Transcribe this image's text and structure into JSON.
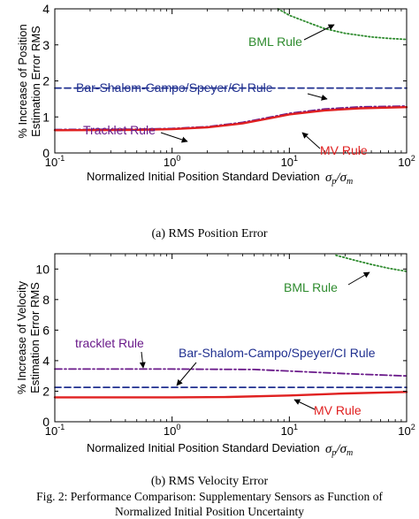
{
  "figure": {
    "caption_line1": "Fig. 2: Performance Comparison: Supplementary Sensors as Function of",
    "caption_line2": "Normalized Initial Position Uncertainty"
  },
  "chart_data": [
    {
      "type": "line",
      "caption": "(a) RMS Position Error",
      "xlabel": "Normalized Initial Position Standard Deviation",
      "xlabel_math": "σp/σm",
      "ylabel_line1": "% Increase of Position",
      "ylabel_line2": "Estimation Error RMS",
      "xscale": "log",
      "xlim": [
        0.1,
        100
      ],
      "ylim": [
        0,
        4
      ],
      "yticks": [
        0,
        1,
        2,
        3,
        4
      ],
      "xtick_labels": [
        "10-1",
        "100",
        "101",
        "102"
      ],
      "grid": false,
      "series": [
        {
          "name": "BML Rule",
          "color": "#2e8b2e",
          "style": "dotted",
          "x": [
            8,
            10,
            15,
            20,
            30,
            50,
            70,
            100
          ],
          "y": [
            4.0,
            3.82,
            3.6,
            3.45,
            3.32,
            3.22,
            3.18,
            3.15
          ]
        },
        {
          "name": "Bar-Shalom-Campo/Speyer/CI Rule",
          "color": "#1f2f8f",
          "style": "dashed",
          "x": [
            0.1,
            100
          ],
          "y": [
            1.8,
            1.8
          ]
        },
        {
          "name": "Tracklet Rule",
          "color": "#6a1a8a",
          "style": "dashdot",
          "x": [
            0.1,
            0.5,
            1,
            2,
            4,
            7,
            10,
            20,
            40,
            100
          ],
          "y": [
            0.65,
            0.66,
            0.68,
            0.73,
            0.85,
            1.0,
            1.1,
            1.22,
            1.28,
            1.3
          ]
        },
        {
          "name": "MV Rule",
          "color": "#e02020",
          "style": "solid",
          "x": [
            0.1,
            0.5,
            1,
            2,
            4,
            7,
            10,
            20,
            40,
            100
          ],
          "y": [
            0.63,
            0.64,
            0.66,
            0.71,
            0.82,
            0.97,
            1.07,
            1.18,
            1.24,
            1.27
          ]
        }
      ],
      "annotations": [
        "BML Rule",
        "Bar-Shalom-Campo/Speyer/CI Rule",
        "Tracklet Rule",
        "MV Rule"
      ]
    },
    {
      "type": "line",
      "caption": "(b) RMS Velocity Error",
      "xlabel": "Normalized Initial Position Standard Deviation",
      "xlabel_math": "σp/σm",
      "ylabel_line1": "% Increase of Velocity",
      "ylabel_line2": "Estimation Error RMS",
      "xscale": "log",
      "xlim": [
        0.1,
        100
      ],
      "ylim": [
        0,
        11
      ],
      "yticks": [
        0,
        2,
        4,
        6,
        8,
        10
      ],
      "xtick_labels": [
        "10-1",
        "100",
        "101",
        "102"
      ],
      "grid": false,
      "series": [
        {
          "name": "BML Rule",
          "color": "#2e8b2e",
          "style": "dotted",
          "x": [
            25,
            35,
            50,
            70,
            100
          ],
          "y": [
            10.9,
            10.6,
            10.3,
            10.05,
            9.85
          ]
        },
        {
          "name": "tracklet Rule",
          "color": "#6a1a8a",
          "style": "dashdot",
          "x": [
            0.1,
            1,
            5,
            10,
            30,
            100
          ],
          "y": [
            3.45,
            3.45,
            3.42,
            3.32,
            3.15,
            3.0
          ]
        },
        {
          "name": "Bar-Shalom-Campo/Speyer/CI Rule",
          "color": "#1f2f8f",
          "style": "dashed",
          "x": [
            0.1,
            100
          ],
          "y": [
            2.25,
            2.25
          ]
        },
        {
          "name": "MV Rule",
          "color": "#e02020",
          "style": "solid",
          "x": [
            0.1,
            1,
            3,
            10,
            30,
            100
          ],
          "y": [
            1.6,
            1.6,
            1.62,
            1.72,
            1.85,
            1.95
          ]
        }
      ],
      "annotations": [
        "BML Rule",
        "tracklet Rule",
        "Bar-Shalom-Campo/Speyer/CI Rule",
        "MV Rule"
      ]
    }
  ]
}
